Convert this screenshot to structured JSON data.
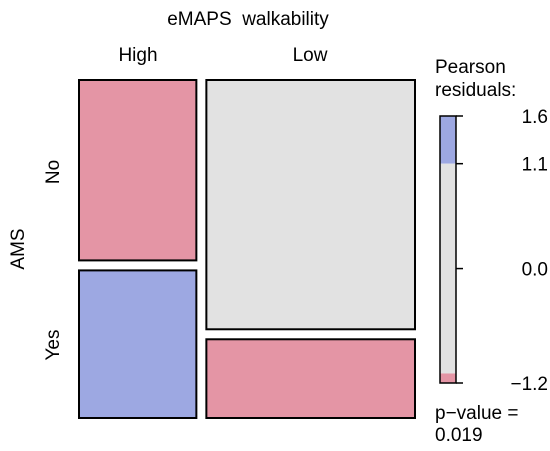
{
  "chart_data": {
    "type": "mosaic",
    "title": "",
    "x_variable": "eMAPS  walkability",
    "y_variable": "AMS",
    "x_categories": [
      "High",
      "Low"
    ],
    "y_categories": [
      "No",
      "Yes"
    ],
    "x_proportions": [
      0.36,
      0.64
    ],
    "cells": [
      {
        "x": "High",
        "y": "No",
        "proportion_within_x": 0.55,
        "residual_color": "#e495a5"
      },
      {
        "x": "High",
        "y": "Yes",
        "proportion_within_x": 0.45,
        "residual_color": "#9da8e2"
      },
      {
        "x": "Low",
        "y": "No",
        "proportion_within_x": 0.76,
        "residual_color": "#e2e2e2"
      },
      {
        "x": "Low",
        "y": "Yes",
        "proportion_within_x": 0.24,
        "residual_color": "#e495a5"
      }
    ],
    "legend": {
      "title_lines": [
        "Pearson",
        "residuals:"
      ],
      "range": [
        -1.2,
        1.6
      ],
      "ticks": [
        1.6,
        1.1,
        0.0,
        -1.2
      ],
      "tick_labels": [
        "1.6",
        "1.1",
        "0.0",
        "−1.2"
      ],
      "bands": [
        {
          "from": 1.1,
          "to": 1.6,
          "color": "#9da8e2"
        },
        {
          "from": -1.1,
          "to": 1.1,
          "color": "#e2e2e2"
        },
        {
          "from": -1.2,
          "to": -1.1,
          "color": "#e495a5"
        }
      ]
    },
    "p_value_label": "p−value =",
    "p_value": "0.019"
  }
}
